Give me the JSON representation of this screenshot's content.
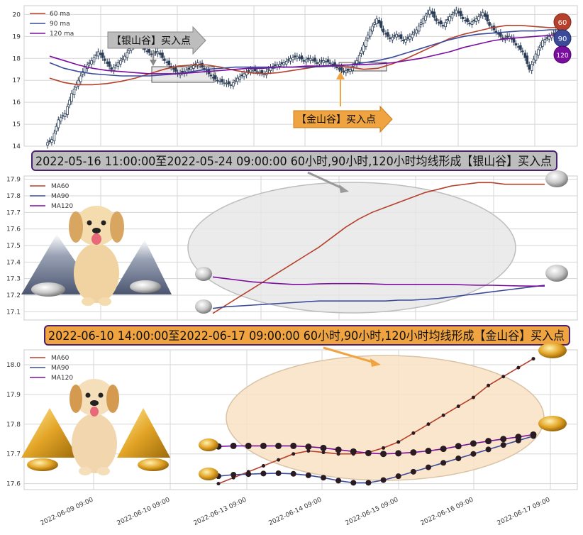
{
  "colors": {
    "ma60": "#b5402c",
    "ma90": "#3b4b9a",
    "ma120": "#7a0e9e",
    "candle": "#2c3e57",
    "silver_fill": "#bdbdbd",
    "gold_fill": "#f0a441",
    "ellipse_silver": "#e6e6e6",
    "ellipse_gold": "#f9e2c4"
  },
  "chart_data": [
    {
      "type": "candlestick",
      "panel": "overview",
      "ylim": [
        14,
        20.4
      ],
      "yticks": [
        "14",
        "15",
        "16",
        "17",
        "18",
        "19",
        "20"
      ],
      "grid": true,
      "legend": {
        "placement": "top-left",
        "entries": [
          "60 ma",
          "90 ma",
          "120 ma"
        ]
      },
      "close_series": [
        14.3,
        15.2,
        15.5,
        16.4,
        17.0,
        17.6,
        17.9,
        18.3,
        17.9,
        17.5,
        17.8,
        18.1,
        18.6,
        18.8,
        18.4,
        18.2,
        18.3,
        17.9,
        17.6,
        17.3,
        17.4,
        17.6,
        17.8,
        17.5,
        17.2,
        17.0,
        16.9,
        16.8,
        17.1,
        17.3,
        17.5,
        17.4,
        17.3,
        17.6,
        17.7,
        17.8,
        18.0,
        18.1,
        17.9,
        18.0,
        17.8,
        17.9,
        17.8,
        17.6,
        17.4,
        17.5,
        17.9,
        18.6,
        19.3,
        19.8,
        19.2,
        18.9,
        19.1,
        18.8,
        19.0,
        19.3,
        19.8,
        20.2,
        19.7,
        19.5,
        19.9,
        20.2,
        19.8,
        19.6,
        19.8,
        20.1,
        19.5,
        19.2,
        18.9,
        19.0,
        18.6,
        18.3,
        17.5,
        18.2,
        18.8,
        19.0,
        19.2,
        19.3
      ],
      "ma60": [
        17.1,
        16.9,
        16.8,
        16.8,
        16.85,
        16.95,
        17.1,
        17.3,
        17.5,
        17.65,
        17.7,
        17.7,
        17.6,
        17.45,
        17.35,
        17.3,
        17.35,
        17.45,
        17.55,
        17.65,
        17.65,
        17.6,
        17.5,
        17.55,
        17.75,
        18.0,
        18.3,
        18.6,
        18.9,
        19.1,
        19.25,
        19.4,
        19.5,
        19.5,
        19.45,
        19.4,
        19.4
      ],
      "ma90": [
        17.8,
        17.55,
        17.4,
        17.3,
        17.25,
        17.2,
        17.2,
        17.2,
        17.25,
        17.3,
        17.4,
        17.5,
        17.55,
        17.6,
        17.6,
        17.6,
        17.6,
        17.6,
        17.6,
        17.62,
        17.65,
        17.7,
        17.8,
        17.9,
        18.05,
        18.25,
        18.45,
        18.65,
        18.85,
        19.0,
        19.1,
        19.15,
        19.2,
        19.25,
        19.25,
        19.3,
        19.3
      ],
      "ma120": [
        18.1,
        17.9,
        17.7,
        17.55,
        17.45,
        17.4,
        17.35,
        17.3,
        17.3,
        17.3,
        17.35,
        17.4,
        17.45,
        17.5,
        17.55,
        17.55,
        17.6,
        17.6,
        17.65,
        17.65,
        17.68,
        17.7,
        17.72,
        17.75,
        17.8,
        17.9,
        18.0,
        18.15,
        18.3,
        18.5,
        18.65,
        18.8,
        18.9,
        18.95,
        19.0,
        19.05,
        19.1
      ],
      "annotations": [
        {
          "label": "【银山谷】买入点",
          "style": "silver"
        },
        {
          "label": "【金山谷】买入点",
          "style": "gold"
        }
      ],
      "end_badges": [
        "60",
        "90",
        "120"
      ]
    },
    {
      "type": "line",
      "panel": "silver_valley",
      "title": "2022-05-16 11:00:00至2022-05-24 09:00:00 60小时,90小时,120小时均线形成【银山谷】买入点",
      "ylim": [
        17.05,
        17.92
      ],
      "yticks": [
        "17.1",
        "17.2",
        "17.3",
        "17.4",
        "17.5",
        "17.6",
        "17.7",
        "17.8",
        "17.9"
      ],
      "grid": true,
      "legend": {
        "placement": "top-left",
        "entries": [
          "MA60",
          "MA90",
          "MA120"
        ]
      },
      "series": [
        {
          "name": "MA60",
          "values": [
            17.09,
            17.14,
            17.19,
            17.24,
            17.29,
            17.34,
            17.39,
            17.44,
            17.49,
            17.55,
            17.61,
            17.66,
            17.7,
            17.73,
            17.76,
            17.79,
            17.82,
            17.84,
            17.86,
            17.87,
            17.88,
            17.88,
            17.87,
            17.87,
            17.87,
            17.87
          ]
        },
        {
          "name": "MA90",
          "values": [
            17.12,
            17.13,
            17.135,
            17.14,
            17.145,
            17.15,
            17.155,
            17.16,
            17.165,
            17.165,
            17.165,
            17.165,
            17.165,
            17.165,
            17.17,
            17.17,
            17.175,
            17.18,
            17.19,
            17.2,
            17.21,
            17.22,
            17.23,
            17.24,
            17.25,
            17.26
          ]
        },
        {
          "name": "MA120",
          "values": [
            17.31,
            17.3,
            17.29,
            17.28,
            17.275,
            17.27,
            17.265,
            17.265,
            17.268,
            17.27,
            17.27,
            17.27,
            17.268,
            17.265,
            17.265,
            17.265,
            17.265,
            17.265,
            17.265,
            17.262,
            17.26,
            17.26,
            17.258,
            17.256,
            17.255,
            17.255
          ]
        }
      ]
    },
    {
      "type": "line",
      "panel": "gold_valley",
      "title": "2022-06-10 14:00:00至2022-06-17 09:00:00 60小时,90小时,120小时均线形成【金山谷】买入点",
      "ylim": [
        17.58,
        18.05
      ],
      "yticks": [
        "17.6",
        "17.7",
        "17.8",
        "17.9",
        "18.0"
      ],
      "xticks": [
        "2022-06-09 09:00",
        "2022-06-10 09:00",
        "2022-06-13 09:00",
        "2022-06-14 09:00",
        "2022-06-15 09:00",
        "2022-06-16 09:00",
        "2022-06-17 09:00"
      ],
      "grid": true,
      "legend": {
        "placement": "top-left",
        "entries": [
          "MA60",
          "MA90",
          "MA120"
        ]
      },
      "series": [
        {
          "name": "MA60",
          "values": [
            17.6,
            17.62,
            17.64,
            17.66,
            17.68,
            17.7,
            17.71,
            17.705,
            17.7,
            17.7,
            17.705,
            17.72,
            17.74,
            17.77,
            17.8,
            17.83,
            17.86,
            17.89,
            17.93,
            17.96,
            17.99,
            18.02
          ]
        },
        {
          "name": "MA90",
          "values": [
            17.625,
            17.63,
            17.632,
            17.634,
            17.635,
            17.633,
            17.628,
            17.62,
            17.61,
            17.603,
            17.603,
            17.612,
            17.625,
            17.64,
            17.655,
            17.67,
            17.685,
            17.7,
            17.715,
            17.73,
            17.745,
            17.76
          ]
        },
        {
          "name": "MA120",
          "values": [
            17.725,
            17.727,
            17.727,
            17.727,
            17.727,
            17.727,
            17.724,
            17.72,
            17.714,
            17.708,
            17.703,
            17.7,
            17.702,
            17.705,
            17.71,
            17.717,
            17.726,
            17.735,
            17.743,
            17.75,
            17.757,
            17.765
          ]
        }
      ]
    }
  ]
}
